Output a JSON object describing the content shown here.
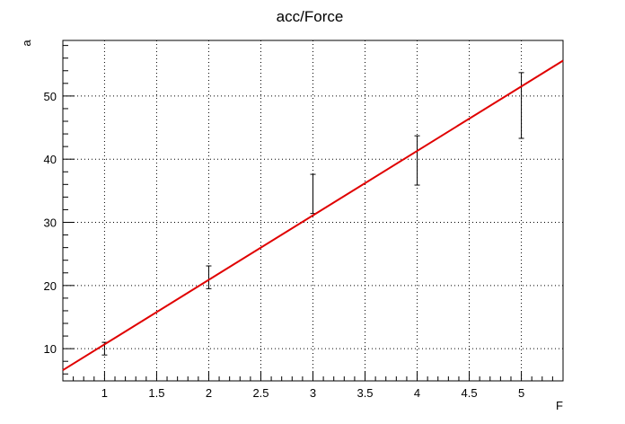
{
  "chart_data": {
    "type": "scatter",
    "title": "acc/Force",
    "xlabel": "F",
    "ylabel": "a",
    "xlim": [
      0.6,
      5.4
    ],
    "ylim": [
      4.9,
      58.8
    ],
    "grid": true,
    "x_ticks": [
      1,
      1.5,
      2,
      2.5,
      3,
      3.5,
      4,
      4.5,
      5
    ],
    "x_tick_labels": [
      "1",
      "1.5",
      "2",
      "2.5",
      "3",
      "3.5",
      "4",
      "4.5",
      "5"
    ],
    "y_ticks": [
      10,
      20,
      30,
      40,
      50
    ],
    "y_tick_labels": [
      "10",
      "20",
      "30",
      "40",
      "50"
    ],
    "series": [
      {
        "type": "errorbar",
        "x": [
          1,
          2,
          3,
          4,
          5
        ],
        "y": [
          10.0,
          21.3,
          34.5,
          39.8,
          48.5
        ],
        "yerr": [
          1.0,
          1.8,
          3.1,
          3.9,
          5.2
        ],
        "color": "#000000"
      },
      {
        "type": "line",
        "x": [
          0.6,
          5.4
        ],
        "y": [
          6.6,
          55.6
        ],
        "color": "#e00000"
      }
    ]
  }
}
